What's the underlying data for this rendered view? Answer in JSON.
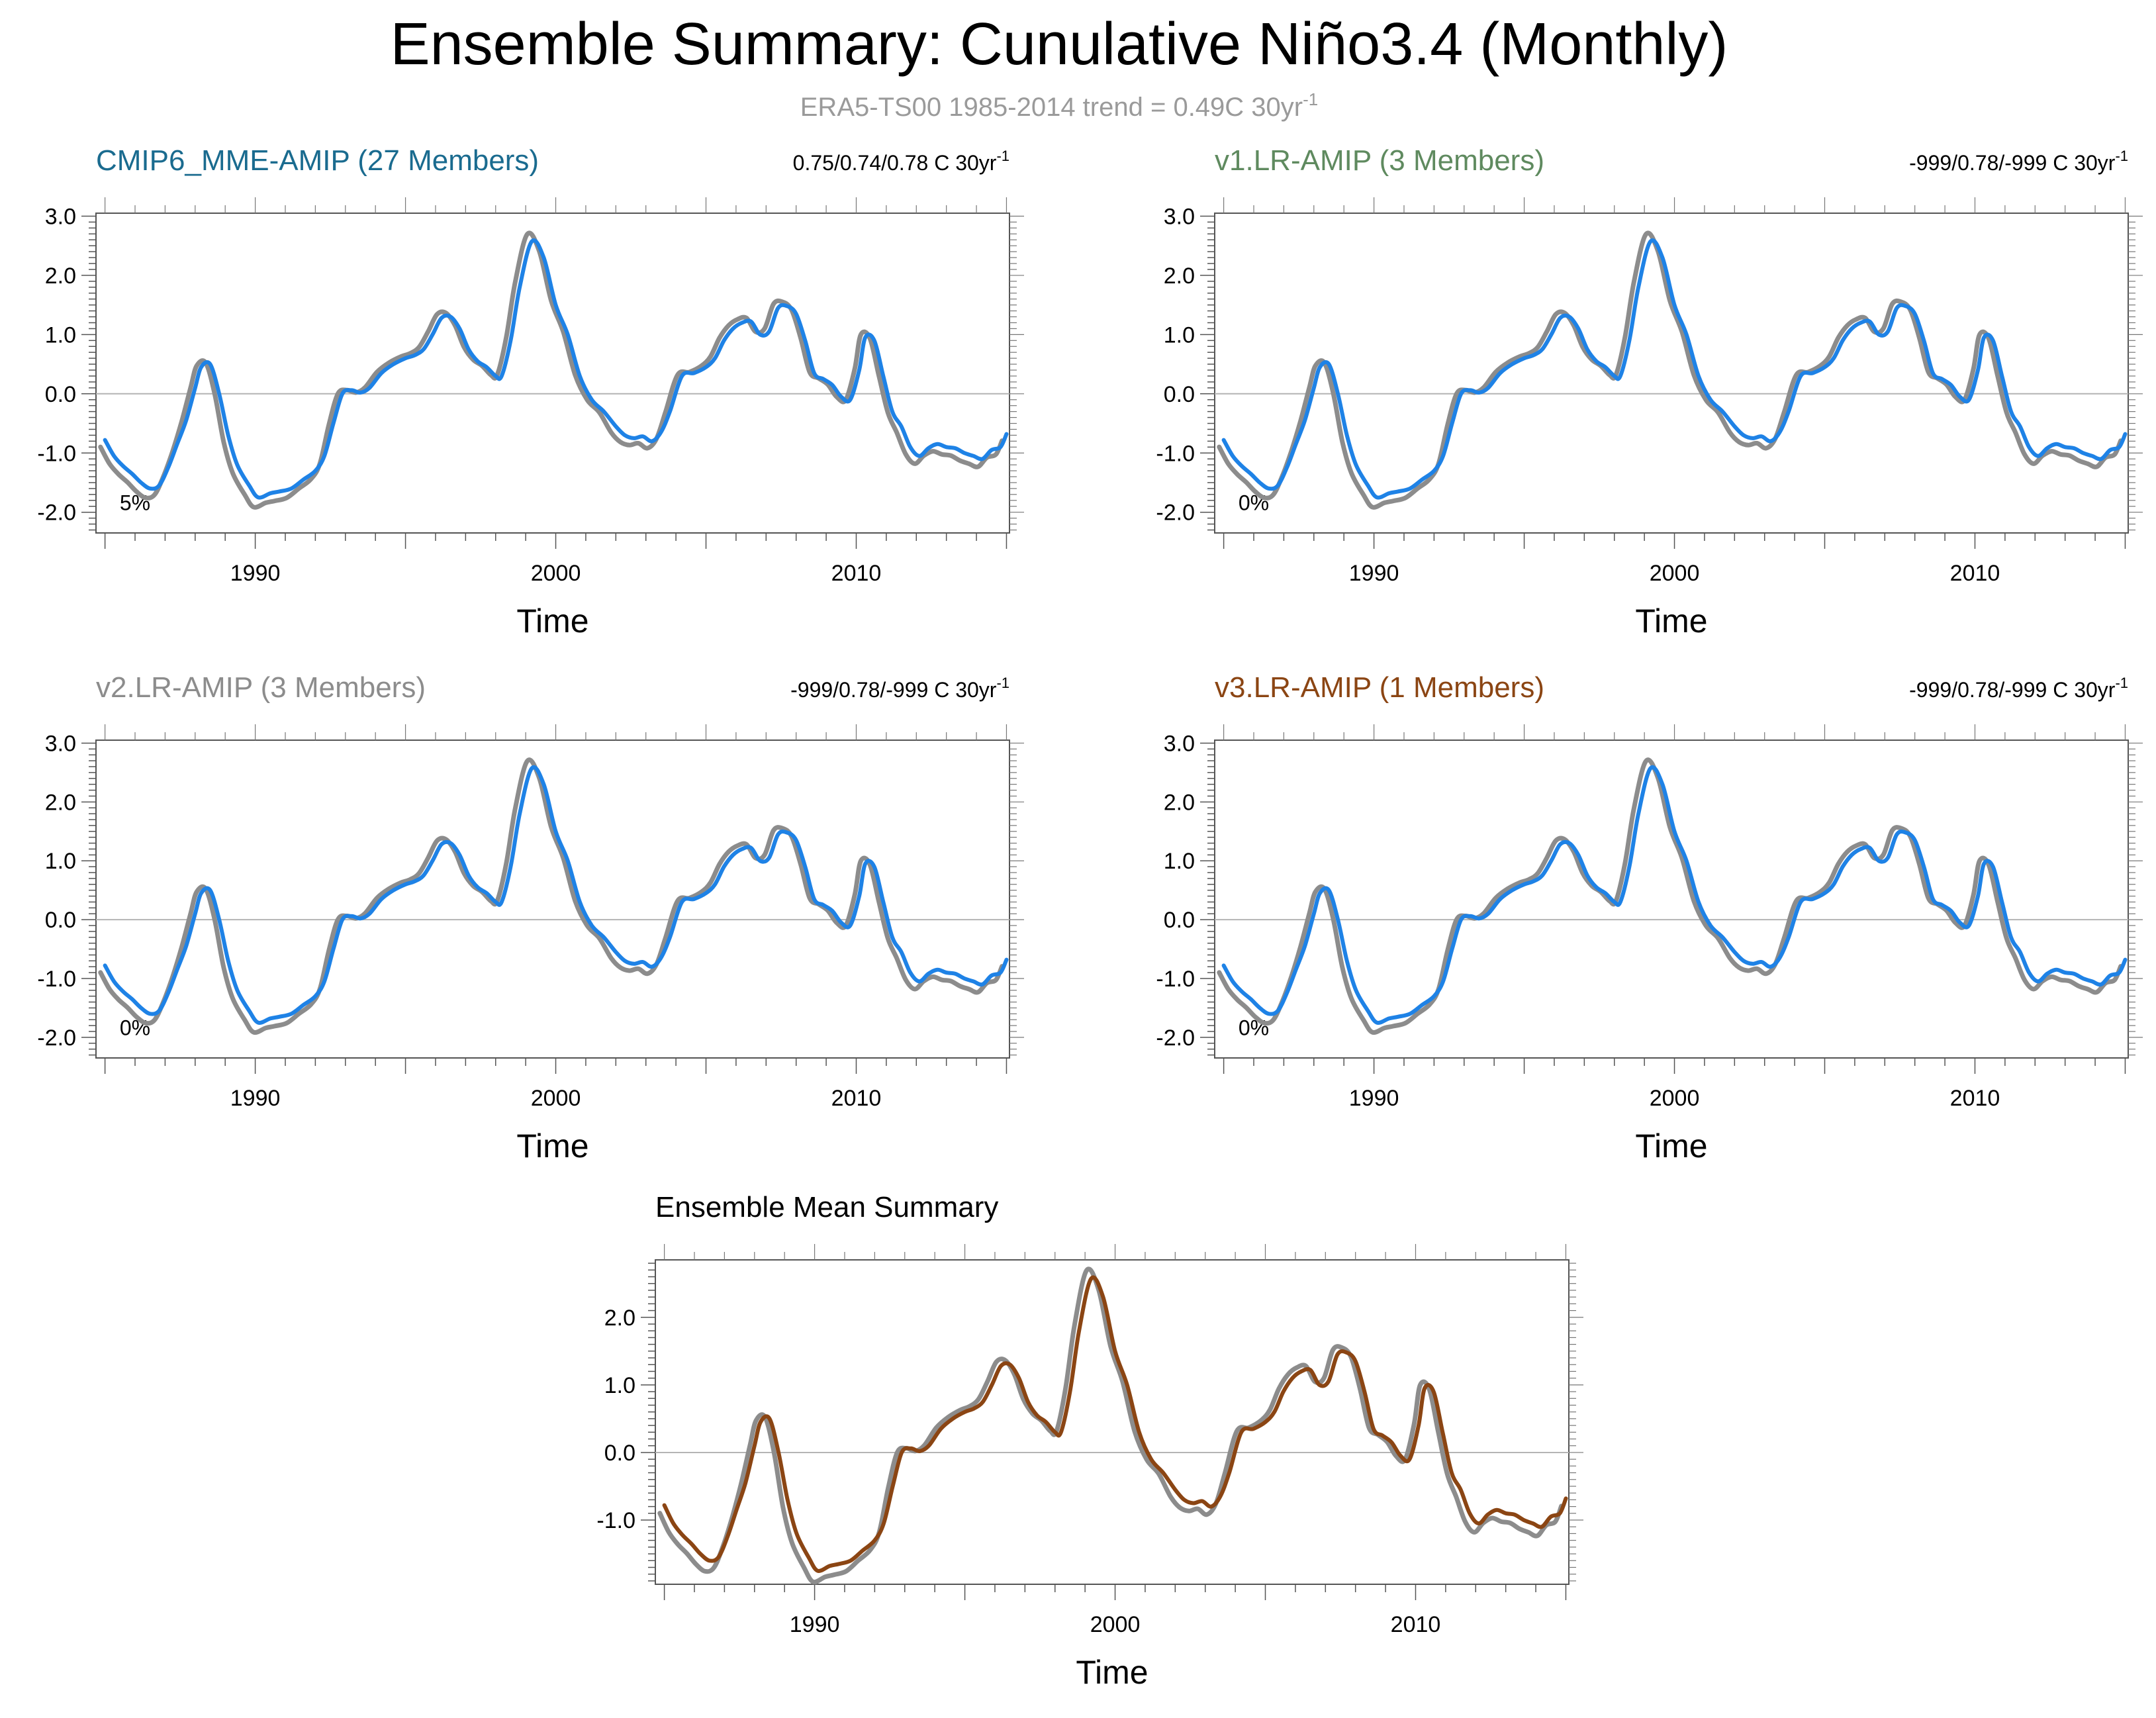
{
  "page": {
    "title": "Ensemble Summary: Cunulative Niño3.4 (Monthly)",
    "subtitle": "ERA5-TS00 1985-2014 trend = 0.49C 30yr",
    "subtitle_sup": "-1"
  },
  "colors": {
    "observed": "#8c8c8c",
    "model": "#1e82e6",
    "mean_model": "#8b4513",
    "zero_line": "#b4b4b4",
    "cmip6_title": "#1a6b8f",
    "v1_title": "#5f8a5f",
    "v2_title": "#8c8c8c",
    "v3_title": "#8b4513",
    "mean_title": "#000000"
  },
  "chart_data": [
    {
      "id": "cmip6",
      "type": "line",
      "title": "CMIP6_MME-AMIP (27 Members)",
      "title_color_key": "cmip6_title",
      "stat": "0.75/0.74/0.78 C 30yr",
      "stat_sup": "-1",
      "percent": "5%",
      "xlabel": "Time",
      "xlim": [
        1984.7,
        2015.1
      ],
      "ylim": [
        -2.35,
        3.05
      ],
      "yticks": [
        -2.0,
        -1.0,
        0.0,
        1.0,
        2.0,
        3.0
      ],
      "ytick_labels": [
        "-2.0",
        "-1.0",
        "0.0",
        "1.0",
        "2.0",
        "3.0"
      ],
      "xticks": [
        1990,
        2000,
        2010
      ],
      "xtick_labels": [
        "1990",
        "2000",
        "2010"
      ],
      "series": [
        {
          "name": "ERA5-TS00",
          "color_key": "observed",
          "offset_x": -0.15,
          "offset_y": 0.12
        },
        {
          "name": "CMIP6_MME-AMIP",
          "color_key": "model",
          "offset_x": 0.0,
          "offset_y": 0.0
        }
      ]
    },
    {
      "id": "v1",
      "type": "line",
      "title": "v1.LR-AMIP (3 Members)",
      "title_color_key": "v1_title",
      "stat": "-999/0.78/-999 C 30yr",
      "stat_sup": "-1",
      "percent": "0%",
      "xlabel": "Time",
      "xlim": [
        1984.7,
        2015.1
      ],
      "ylim": [
        -2.35,
        3.05
      ],
      "yticks": [
        -2.0,
        -1.0,
        0.0,
        1.0,
        2.0,
        3.0
      ],
      "ytick_labels": [
        "-2.0",
        "-1.0",
        "0.0",
        "1.0",
        "2.0",
        "3.0"
      ],
      "xticks": [
        1990,
        2000,
        2010
      ],
      "xtick_labels": [
        "1990",
        "2000",
        "2010"
      ],
      "series": [
        {
          "name": "ERA5-TS00",
          "color_key": "observed",
          "offset_x": -0.15,
          "offset_y": 0.12
        },
        {
          "name": "v1.LR-AMIP",
          "color_key": "model",
          "offset_x": 0.0,
          "offset_y": 0.0
        }
      ]
    },
    {
      "id": "v2",
      "type": "line",
      "title": "v2.LR-AMIP (3 Members)",
      "title_color_key": "v2_title",
      "stat": "-999/0.78/-999 C 30yr",
      "stat_sup": "-1",
      "percent": "0%",
      "xlabel": "Time",
      "xlim": [
        1984.7,
        2015.1
      ],
      "ylim": [
        -2.35,
        3.05
      ],
      "yticks": [
        -2.0,
        -1.0,
        0.0,
        1.0,
        2.0,
        3.0
      ],
      "ytick_labels": [
        "-2.0",
        "-1.0",
        "0.0",
        "1.0",
        "2.0",
        "3.0"
      ],
      "xticks": [
        1990,
        2000,
        2010
      ],
      "xtick_labels": [
        "1990",
        "2000",
        "2010"
      ],
      "series": [
        {
          "name": "ERA5-TS00",
          "color_key": "observed",
          "offset_x": -0.15,
          "offset_y": 0.12
        },
        {
          "name": "v2.LR-AMIP",
          "color_key": "model",
          "offset_x": 0.0,
          "offset_y": 0.0
        }
      ]
    },
    {
      "id": "v3",
      "type": "line",
      "title": "v3.LR-AMIP (1 Members)",
      "title_color_key": "v3_title",
      "stat": "-999/0.78/-999 C 30yr",
      "stat_sup": "-1",
      "percent": "0%",
      "xlabel": "Time",
      "xlim": [
        1984.7,
        2015.1
      ],
      "ylim": [
        -2.35,
        3.05
      ],
      "yticks": [
        -2.0,
        -1.0,
        0.0,
        1.0,
        2.0,
        3.0
      ],
      "ytick_labels": [
        "-2.0",
        "-1.0",
        "0.0",
        "1.0",
        "2.0",
        "3.0"
      ],
      "xticks": [
        1990,
        2000,
        2010
      ],
      "xtick_labels": [
        "1990",
        "2000",
        "2010"
      ],
      "series": [
        {
          "name": "ERA5-TS00",
          "color_key": "observed",
          "offset_x": -0.15,
          "offset_y": 0.12
        },
        {
          "name": "v3.LR-AMIP",
          "color_key": "model",
          "offset_x": 0.0,
          "offset_y": 0.0
        }
      ]
    },
    {
      "id": "mean",
      "type": "line",
      "title": "Ensemble Mean Summary",
      "title_color_key": "mean_title",
      "stat": "",
      "stat_sup": "",
      "percent": "",
      "xlabel": "Time",
      "xlim": [
        1984.7,
        2015.1
      ],
      "ylim": [
        -1.95,
        2.85
      ],
      "yticks": [
        -1.0,
        0.0,
        1.0,
        2.0
      ],
      "ytick_labels": [
        "-1.0",
        "0.0",
        "1.0",
        "2.0"
      ],
      "xticks": [
        1990,
        2000,
        2010
      ],
      "xtick_labels": [
        "1990",
        "2000",
        "2010"
      ],
      "series": [
        {
          "name": "ERA5-TS00",
          "color_key": "observed",
          "offset_x": -0.15,
          "offset_y": 0.12
        },
        {
          "name": "Ensemble Mean",
          "color_key": "mean_model",
          "offset_x": 0.0,
          "offset_y": 0.0
        }
      ]
    }
  ],
  "base_curve": {
    "x": [
      1985.0,
      1985.3,
      1985.6,
      1985.9,
      1986.2,
      1986.5,
      1986.8,
      1987.1,
      1987.4,
      1987.7,
      1988.0,
      1988.2,
      1988.5,
      1988.8,
      1989.1,
      1989.4,
      1989.8,
      1990.1,
      1990.5,
      1990.8,
      1991.2,
      1991.6,
      1992.0,
      1992.3,
      1992.6,
      1992.9,
      1993.2,
      1993.5,
      1993.8,
      1994.2,
      1994.6,
      1995.0,
      1995.3,
      1995.6,
      1995.9,
      1996.2,
      1996.5,
      1996.8,
      1997.1,
      1997.4,
      1997.7,
      1998.0,
      1998.2,
      1998.5,
      1998.8,
      1999.2,
      1999.6,
      2000.0,
      2000.4,
      2000.8,
      2001.2,
      2001.6,
      2002.0,
      2002.3,
      2002.6,
      2002.9,
      2003.2,
      2003.5,
      2003.8,
      2004.2,
      2004.6,
      2005.0,
      2005.3,
      2005.6,
      2005.9,
      2006.2,
      2006.5,
      2006.8,
      2007.1,
      2007.4,
      2007.7,
      2008.0,
      2008.3,
      2008.6,
      2008.9,
      2009.2,
      2009.5,
      2009.8,
      2010.1,
      2010.3,
      2010.6,
      2010.9,
      2011.2,
      2011.5,
      2011.8,
      2012.1,
      2012.4,
      2012.7,
      2013.0,
      2013.3,
      2013.6,
      2013.9,
      2014.2,
      2014.5,
      2014.8,
      2015.0
    ],
    "y": [
      -0.78,
      -1.05,
      -1.22,
      -1.35,
      -1.5,
      -1.6,
      -1.55,
      -1.25,
      -0.85,
      -0.45,
      0.1,
      0.45,
      0.5,
      0.0,
      -0.7,
      -1.2,
      -1.55,
      -1.75,
      -1.68,
      -1.65,
      -1.6,
      -1.45,
      -1.3,
      -1.05,
      -0.5,
      0.0,
      0.06,
      0.02,
      0.1,
      0.35,
      0.5,
      0.6,
      0.65,
      0.75,
      1.0,
      1.28,
      1.3,
      1.1,
      0.75,
      0.55,
      0.45,
      0.3,
      0.3,
      0.9,
      1.8,
      2.57,
      2.3,
      1.5,
      1.0,
      0.3,
      -0.1,
      -0.3,
      -0.55,
      -0.7,
      -0.75,
      -0.72,
      -0.8,
      -0.65,
      -0.3,
      0.3,
      0.35,
      0.45,
      0.6,
      0.9,
      1.1,
      1.2,
      1.22,
      1.0,
      1.05,
      1.45,
      1.48,
      1.35,
      0.9,
      0.35,
      0.25,
      0.15,
      -0.05,
      -0.1,
      0.4,
      0.95,
      0.9,
      0.3,
      -0.3,
      -0.55,
      -0.9,
      -1.05,
      -0.92,
      -0.85,
      -0.9,
      -0.92,
      -1.0,
      -1.05,
      -1.1,
      -0.95,
      -0.9,
      -0.68
    ]
  }
}
